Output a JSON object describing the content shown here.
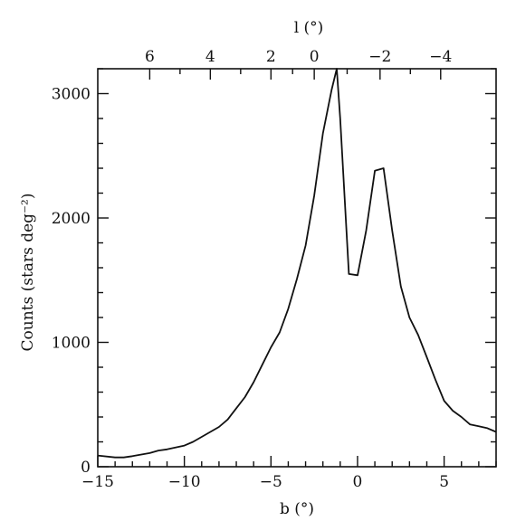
{
  "chart_data": {
    "type": "line",
    "title": "",
    "xlabel": "b (°)",
    "x2label": "l (°)",
    "ylabel": "Counts (stars deg⁻²)",
    "xlim": [
      -15,
      8
    ],
    "ylim": [
      0,
      3200
    ],
    "grid": false,
    "legend": "none",
    "x_ticks": [
      {
        "value": -15,
        "label": "−15"
      },
      {
        "value": -10,
        "label": "−10"
      },
      {
        "value": -5,
        "label": "−5"
      },
      {
        "value": 0,
        "label": "0"
      },
      {
        "value": 5,
        "label": "5"
      }
    ],
    "top_ticks": [
      {
        "value": -12,
        "label": "6"
      },
      {
        "value": -8.5,
        "label": "4"
      },
      {
        "value": -5,
        "label": "2"
      },
      {
        "value": -2.5,
        "label": "0"
      },
      {
        "value": 1.3,
        "label": "−2"
      },
      {
        "value": 4.8,
        "label": "−4"
      }
    ],
    "y_ticks": [
      {
        "value": 0,
        "label": "0"
      },
      {
        "value": 1000,
        "label": "1000"
      },
      {
        "value": 2000,
        "label": "2000"
      },
      {
        "value": 3000,
        "label": "3000"
      }
    ],
    "series": [
      {
        "name": "",
        "x": [
          -15,
          -14,
          -13.5,
          -13,
          -12,
          -11.5,
          -11,
          -10,
          -9.5,
          -9,
          -8,
          -7.5,
          -7,
          -6.5,
          -6,
          -5.5,
          -5,
          -4.5,
          -4,
          -3.5,
          -3,
          -2.5,
          -2,
          -1.5,
          -1.2,
          -1,
          -0.5,
          0,
          0.5,
          1,
          1.5,
          2,
          2.5,
          3,
          3.5,
          4,
          4.5,
          5,
          5.5,
          6,
          6.5,
          7,
          7.5,
          8
        ],
        "y": [
          90,
          75,
          75,
          85,
          110,
          130,
          140,
          170,
          200,
          240,
          320,
          380,
          470,
          560,
          680,
          820,
          960,
          1080,
          1270,
          1510,
          1780,
          2180,
          2680,
          3030,
          3200,
          2800,
          1550,
          1540,
          1900,
          2380,
          2400,
          1900,
          1450,
          1200,
          1060,
          880,
          700,
          530,
          450,
          400,
          340,
          325,
          310,
          280
        ]
      }
    ]
  }
}
